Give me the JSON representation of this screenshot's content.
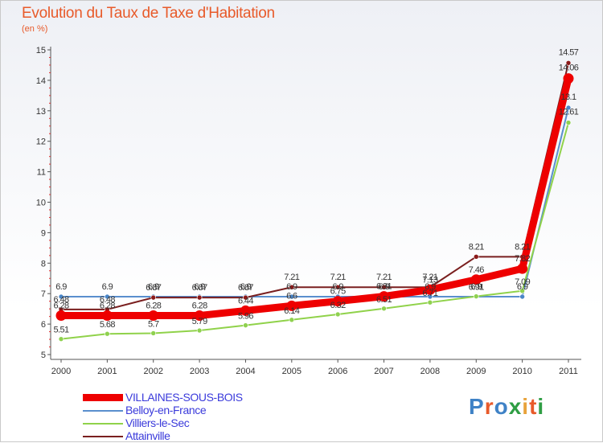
{
  "header": {
    "title": "Evolution du Taux de Taxe d'Habitation",
    "subtitle": "(en %)"
  },
  "logo": {
    "text": "Proxiti",
    "colors": [
      "#3f82c6",
      "#e85a2a",
      "#3f82c6",
      "#2f9e44",
      "#e8a33b",
      "#e85a2a",
      "#2f9e44"
    ]
  },
  "chart_data": {
    "type": "line",
    "title": "Evolution du Taux de Taxe d'Habitation",
    "subtitle": "(en %)",
    "xlabel": "",
    "ylabel": "(en %)",
    "x": [
      "2000",
      "2001",
      "2002",
      "2003",
      "2004",
      "2005",
      "2006",
      "2007",
      "2008",
      "2009",
      "2010",
      "2011"
    ],
    "ylim": [
      5,
      15
    ],
    "yticks": [
      "5",
      "6",
      "7",
      "8",
      "9",
      "10",
      "11",
      "12",
      "13",
      "14",
      "15"
    ],
    "grid": false,
    "legend_position": "bottom-left",
    "series": [
      {
        "name": "VILLAINES-SOUS-BOIS",
        "color": "#ee0000",
        "width": 9,
        "values": [
          6.28,
          6.28,
          6.28,
          6.28,
          6.44,
          6.6,
          6.75,
          6.91,
          7.13,
          7.46,
          7.82,
          14.06
        ],
        "labels": [
          "6.28",
          "6.28",
          "6.28",
          "6.28",
          "6.44",
          "6.6",
          "6.75",
          "6.91",
          "7.13",
          "7.46",
          "7.82",
          "14.06"
        ]
      },
      {
        "name": "Belloy-en-France",
        "color": "#5a8fce",
        "width": 2,
        "values": [
          6.9,
          6.9,
          6.9,
          6.9,
          6.9,
          6.9,
          6.9,
          6.9,
          6.9,
          6.9,
          6.9,
          13.1
        ],
        "labels": [
          "6.9",
          "6.9",
          "6.9",
          "6.9",
          "6.9",
          "6.9",
          "6.9",
          "6.9",
          "6.9",
          "6.9",
          "6.9",
          "13.1"
        ]
      },
      {
        "name": "Villiers-le-Sec",
        "color": "#90d24a",
        "width": 2,
        "values": [
          5.51,
          5.68,
          5.7,
          5.79,
          5.96,
          6.14,
          6.32,
          6.51,
          6.71,
          6.91,
          7.09,
          12.61
        ],
        "labels": [
          "5.51",
          "5.68",
          "5.7",
          "5.79",
          "5.96",
          "6.14",
          "6.32",
          "6.51",
          "6.71",
          "6.91",
          "7.09",
          "12.61"
        ]
      },
      {
        "name": "Attainville",
        "color": "#7a1f1f",
        "width": 2,
        "values": [
          6.48,
          6.48,
          6.87,
          6.87,
          6.87,
          7.21,
          7.21,
          7.21,
          7.21,
          8.21,
          8.21,
          14.57
        ],
        "labels": [
          "6.48",
          "6.48",
          "6.87",
          "6.87",
          "6.87",
          "7.21",
          "7.21",
          "7.21",
          "7.21",
          "8.21",
          "8.21",
          "14.57"
        ]
      }
    ]
  }
}
